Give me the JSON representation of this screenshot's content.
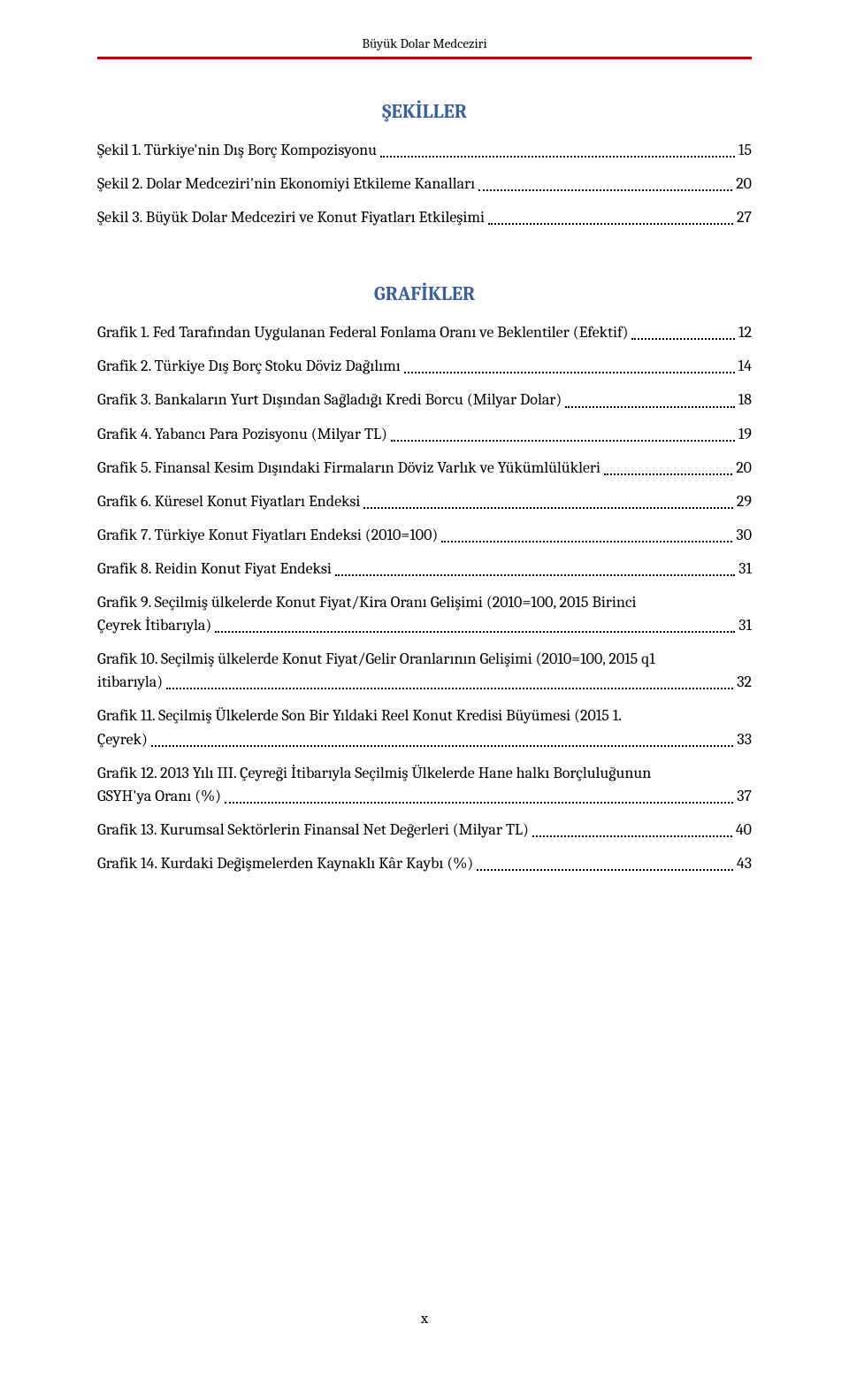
{
  "running_head": "Büyük Dolar Medceziri",
  "page_number": "x",
  "sections": {
    "sekiller": {
      "title": "ŞEKİLLER",
      "entries": [
        {
          "text": "Şekil 1. Türkiye'nin Dış Borç Kompozisyonu",
          "page": "15"
        },
        {
          "text": "Şekil 2. Dolar Medceziri'nin Ekonomiyi Etkileme Kanalları",
          "page": "20"
        },
        {
          "text": "Şekil 3. Büyük Dolar Medceziri ve Konut Fiyatları Etkileşimi",
          "page": "27"
        }
      ]
    },
    "grafikler": {
      "title": "GRAFİKLER",
      "entries": [
        {
          "text": "Grafik 1. Fed Tarafından Uygulanan Federal Fonlama Oranı ve Beklentiler (Efektif)",
          "page": "12"
        },
        {
          "text": "Grafik 2. Türkiye Dış Borç Stoku Döviz Dağılımı",
          "page": "14"
        },
        {
          "text": "Grafik 3. Bankaların Yurt Dışından Sağladığı Kredi Borcu (Milyar Dolar)",
          "page": "18"
        },
        {
          "text": "Grafik 4. Yabancı Para Pozisyonu (Milyar TL)",
          "page": "19"
        },
        {
          "text": "Grafik 5. Finansal Kesim Dışındaki Firmaların Döviz Varlık ve Yükümlülükleri",
          "page": "20"
        },
        {
          "text": "Grafik 6. Küresel Konut Fiyatları Endeksi",
          "page": "29"
        },
        {
          "text": "Grafik 7. Türkiye Konut Fiyatları Endeksi  (2010=100)",
          "page": "30"
        },
        {
          "text": "Grafik 8. Reidin Konut Fiyat Endeksi",
          "page": "31"
        },
        {
          "line1": "Grafik 9. Seçilmiş ülkelerde Konut Fiyat/Kira Oranı Gelişimi (2010=100, 2015 Birinci",
          "line2": "Çeyrek  İtibarıyla)",
          "page": "31",
          "multi": true
        },
        {
          "line1": "Grafik 10. Seçilmiş ülkelerde Konut Fiyat/Gelir Oranlarının Gelişimi (2010=100, 2015 q1",
          "line2": "itibarıyla)",
          "page": "32",
          "multi": true
        },
        {
          "line1": "Grafik 11. Seçilmiş Ülkelerde Son Bir Yıldaki Reel Konut Kredisi Büyümesi (2015 1.",
          "line2": "Çeyrek)",
          "page": "33",
          "multi": true
        },
        {
          "line1": "Grafik 12. 2013 Yılı III. Çeyreği İtibarıyla Seçilmiş Ülkelerde Hane halkı Borçluluğunun",
          "line2": "GSYH'ya Oranı (%)",
          "page": "37",
          "multi": true
        },
        {
          "text": "Grafik 13. Kurumsal Sektörlerin Finansal Net Değerleri (Milyar TL)",
          "page": "40"
        },
        {
          "text": "Grafik 14. Kurdaki Değişmelerden Kaynaklı Kâr Kaybı (%)",
          "page": "43"
        }
      ]
    }
  }
}
